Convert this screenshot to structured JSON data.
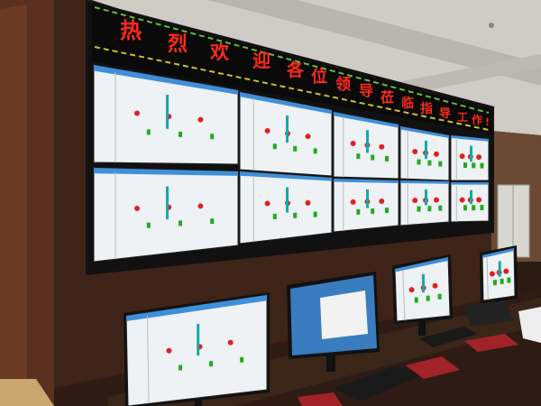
{
  "banner": {
    "chars": [
      "热",
      "烈",
      "欢",
      "迎",
      "各",
      "位",
      "领",
      "导",
      "莅",
      "临",
      "指",
      "导",
      "工",
      "作",
      "!"
    ],
    "text_color": "#ff2a1a"
  },
  "colors": {
    "ceiling": "#c9c6c0",
    "wall_wood": "#4a2a1c",
    "desk": "#3a2418",
    "screen_bg": "#eef2f4",
    "screen_header": "#3f8fd8"
  }
}
